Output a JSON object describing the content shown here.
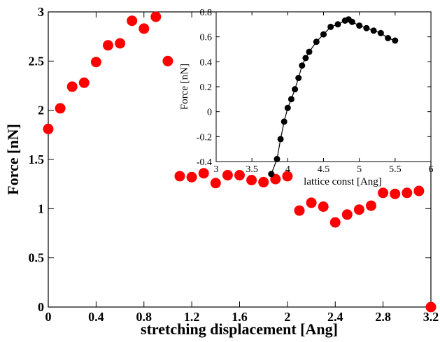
{
  "chart_data": [
    {
      "type": "scatter",
      "title": "",
      "xlabel": "stretching displacement [Ang]",
      "ylabel": "Force [nN]",
      "xlim": [
        0,
        3.2
      ],
      "ylim": [
        0,
        3
      ],
      "xticks": [
        0,
        0.4,
        0.8,
        1.2,
        1.6,
        2,
        2.4,
        2.8,
        3.2
      ],
      "xtick_labels": [
        "0",
        "0.4",
        "0.8",
        "1.2",
        "1.6",
        "2",
        "2.4",
        "2.8",
        "3.2"
      ],
      "yticks": [
        0,
        0.5,
        1,
        1.5,
        2,
        2.5,
        3
      ],
      "ytick_labels": [
        "0",
        "0.5",
        "1",
        "1.5",
        "2",
        "2.5",
        "3"
      ],
      "grid": false,
      "marker_color": "#ff0000",
      "series": [
        {
          "x": [
            0,
            0.1,
            0.2,
            0.3,
            0.4,
            0.5,
            0.6,
            0.7,
            0.8,
            0.9,
            1.0,
            1.1,
            1.2,
            1.3,
            1.4,
            1.5,
            1.6,
            1.7,
            1.8,
            1.9,
            2.0,
            2.1,
            2.2,
            2.3,
            2.4,
            2.5,
            2.6,
            2.7,
            2.8,
            2.9,
            3.0,
            3.1,
            3.2
          ],
          "y": [
            1.81,
            2.02,
            2.24,
            2.28,
            2.49,
            2.66,
            2.68,
            2.91,
            2.83,
            2.95,
            2.5,
            1.33,
            1.32,
            1.36,
            1.26,
            1.34,
            1.34,
            1.29,
            1.27,
            1.3,
            1.33,
            0.98,
            1.06,
            1.02,
            0.86,
            0.94,
            0.99,
            1.03,
            1.16,
            1.15,
            1.16,
            1.18,
            0.0
          ]
        }
      ]
    },
    {
      "type": "line",
      "title": "",
      "xlabel": "lattice const [Ang]",
      "ylabel": "Force [nN]",
      "xlim": [
        3,
        6
      ],
      "ylim": [
        -0.4,
        0.8
      ],
      "xticks": [
        3,
        3.5,
        4,
        4.5,
        5,
        5.5,
        6
      ],
      "xtick_labels": [
        "3",
        "3.5",
        "4",
        "4.5",
        "5",
        "5.5",
        "6"
      ],
      "yticks": [
        -0.4,
        -0.2,
        0,
        0.2,
        0.4,
        0.6,
        0.8
      ],
      "ytick_labels": [
        "-0.4",
        "-0.2",
        "0",
        "0.2",
        "0.4",
        "0.6",
        "0.8"
      ],
      "grid": false,
      "marker_color": "#000000",
      "series": [
        {
          "x": [
            3.77,
            3.85,
            3.9,
            3.95,
            4.0,
            4.05,
            4.1,
            4.15,
            4.2,
            4.25,
            4.3,
            4.4,
            4.5,
            4.6,
            4.7,
            4.8,
            4.85,
            4.9,
            5.0,
            5.1,
            5.2,
            5.3,
            5.4,
            5.5
          ],
          "y": [
            -0.5,
            -0.38,
            -0.22,
            -0.08,
            0.03,
            0.1,
            0.18,
            0.27,
            0.37,
            0.43,
            0.48,
            0.56,
            0.62,
            0.68,
            0.7,
            0.73,
            0.74,
            0.72,
            0.69,
            0.67,
            0.65,
            0.63,
            0.59,
            0.57
          ]
        }
      ]
    }
  ]
}
